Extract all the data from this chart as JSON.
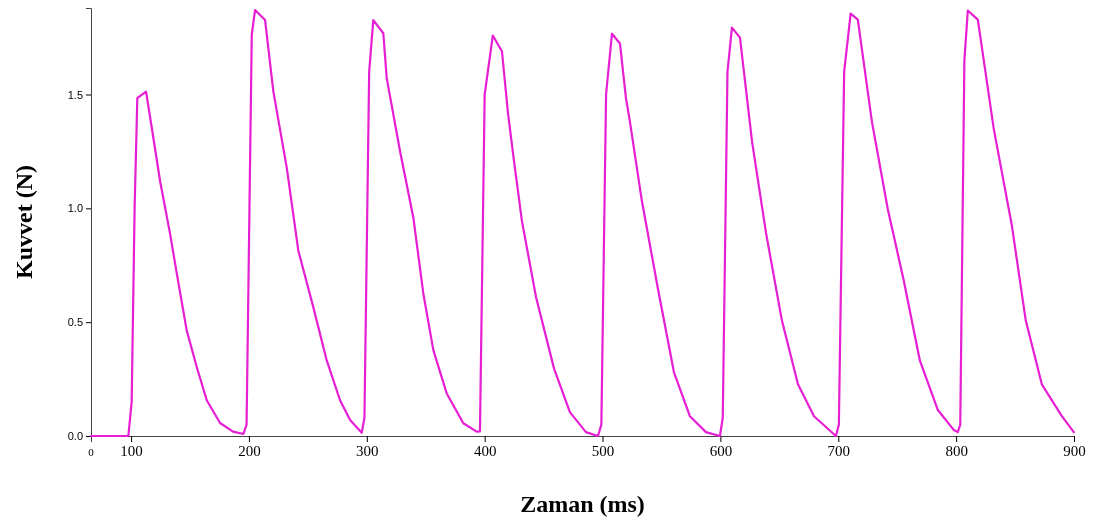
{
  "chart_data": {
    "type": "line",
    "xlabel": "Zaman (ms)",
    "ylabel": "Kuvvet (N)",
    "xlim": [
      66,
      900
    ],
    "ylim": [
      0,
      1.88
    ],
    "annotations": [
      "0"
    ],
    "xticks": [
      100,
      200,
      300,
      400,
      500,
      600,
      700,
      800,
      900
    ],
    "yticks": [
      {
        "value": 0,
        "label": "0.0"
      },
      {
        "value": 0.5,
        "label": "0.5"
      },
      {
        "value": 1,
        "label": "1.0"
      },
      {
        "value": 1.5,
        "label": "1.5"
      }
    ],
    "grid": false,
    "marker": "none",
    "line_style": "solid",
    "series": [
      {
        "color": "#e61ed4",
        "x": [
          66,
          97.7,
          100.5,
          103,
          105.3,
          112.7,
          117.6,
          124.6,
          133.1,
          138.8,
          147.2,
          155.7,
          164.2,
          175.5,
          186.5,
          195.3,
          198,
          202.4,
          205.2,
          213.7,
          220.7,
          232.1,
          241.9,
          254.6,
          266,
          277.3,
          285.8,
          295.7,
          298,
          302,
          305.5,
          314,
          316.9,
          328.2,
          339.5,
          348,
          356.5,
          367.8,
          381.9,
          393.2,
          396,
          400,
          406.9,
          414.7,
          419.8,
          424.9,
          431.6,
          443.5,
          458.8,
          472.3,
          485.9,
          496.1,
          499,
          503,
          508,
          514.8,
          519.8,
          523.2,
          533.4,
          547,
          560.6,
          574.1,
          587.7,
          599.6,
          602,
          606,
          609.8,
          616.6,
          626.8,
          638.7,
          652.2,
          665.8,
          679.4,
          698,
          700.5,
          705,
          710.5,
          716.6,
          728.5,
          742,
          755.6,
          769.2,
          784.5,
          798.1,
          801.4,
          803.5,
          807,
          809.9,
          818.4,
          832,
          847.2,
          859.1,
          872.7,
          889.7,
          899.8
        ],
        "values": [
          0,
          0,
          0.15,
          1.0,
          1.484,
          1.513,
          1.353,
          1.12,
          0.888,
          0.713,
          0.464,
          0.303,
          0.157,
          0.057,
          0.019,
          0.009,
          0.05,
          1.763,
          1.871,
          1.827,
          1.514,
          1.178,
          0.814,
          0.566,
          0.332,
          0.157,
          0.07,
          0.014,
          0.08,
          1.6,
          1.827,
          1.769,
          1.572,
          1.251,
          0.959,
          0.624,
          0.376,
          0.187,
          0.056,
          0.019,
          0.02,
          1.5,
          1.759,
          1.689,
          1.417,
          1.207,
          0.945,
          0.612,
          0.297,
          0.105,
          0.017,
          0,
          0.05,
          1.5,
          1.767,
          1.724,
          1.487,
          1.382,
          1.032,
          0.647,
          0.28,
          0.087,
          0.017,
          0,
          0.08,
          1.6,
          1.794,
          1.75,
          1.295,
          0.892,
          0.507,
          0.227,
          0.087,
          0,
          0.05,
          1.6,
          1.855,
          1.829,
          1.382,
          0.997,
          0.682,
          0.332,
          0.114,
          0.026,
          0.017,
          0.05,
          1.65,
          1.869,
          1.829,
          1.347,
          0.927,
          0.507,
          0.227,
          0.087,
          0.017
        ]
      }
    ]
  }
}
